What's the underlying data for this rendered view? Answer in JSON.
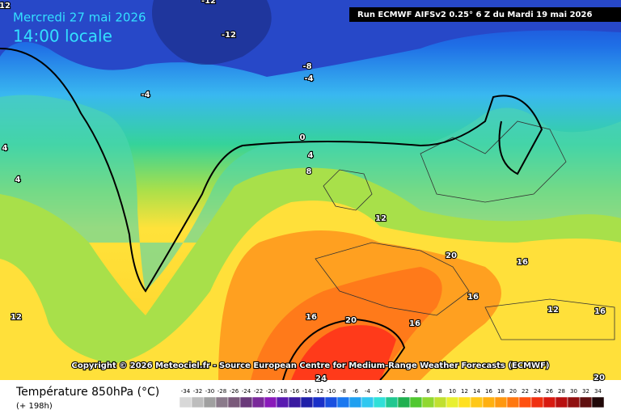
{
  "header": {
    "date": "Mercredi 27 mai 2026",
    "time": "14:00 locale",
    "run": "Run ECMWF AIFSv2 0.25° 6 Z du Mardi 19 mai 2026"
  },
  "copyright": "Copyright © 2026 Meteociel.fr - Source European Centre for Medium-Range Weather Forecasts (ECMWF)",
  "footer": {
    "title": "Température 850hPa (°C)",
    "step": "(+ 198h)"
  },
  "legend": {
    "labels": [
      "-34",
      "-32",
      "-30",
      "-28",
      "-26",
      "-24",
      "-22",
      "-20",
      "-18",
      "-16",
      "-14",
      "-12",
      "-10",
      "-8",
      "-6",
      "-4",
      "-2",
      "0",
      "2",
      "4",
      "6",
      "8",
      "10",
      "12",
      "14",
      "16",
      "18",
      "20",
      "22",
      "24",
      "26",
      "28",
      "30",
      "32",
      "34"
    ]
  },
  "contour_labels": [
    "12",
    "-12",
    "-12",
    "-8",
    "-4",
    "-4",
    "4",
    "4",
    "0",
    "4",
    "8",
    "12",
    "20",
    "16",
    "16",
    "12",
    "16",
    "16",
    "20",
    "16",
    "12",
    "24",
    "20"
  ]
}
